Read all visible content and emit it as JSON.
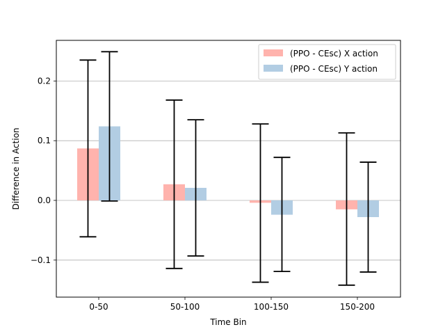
{
  "chart_data": {
    "type": "bar",
    "xlabel": "Time Bin",
    "ylabel": "Difference in Action",
    "categories": [
      "0-50",
      "50-100",
      "100-150",
      "150-200"
    ],
    "ylim": [
      -0.162,
      0.268
    ],
    "yticks": [
      -0.1,
      0.0,
      0.1,
      0.2
    ],
    "ytick_labels": [
      "−0.1",
      "0.0",
      "0.1",
      "0.2"
    ],
    "grid": "horizontal",
    "legend_position": "top-right",
    "series": [
      {
        "name": "(PPO - CEsc) X action",
        "color": "#ffb3ad",
        "values": [
          0.087,
          0.027,
          -0.004,
          -0.015
        ],
        "error_low": [
          -0.061,
          -0.114,
          -0.137,
          -0.142
        ],
        "error_high": [
          0.235,
          0.168,
          0.128,
          0.113
        ]
      },
      {
        "name": "(PPO - CEsc) Y action",
        "color": "#b2cde3",
        "values": [
          0.124,
          0.021,
          -0.024,
          -0.028
        ],
        "error_low": [
          -0.001,
          -0.093,
          -0.119,
          -0.12
        ],
        "error_high": [
          0.249,
          0.135,
          0.072,
          0.064
        ]
      }
    ]
  }
}
